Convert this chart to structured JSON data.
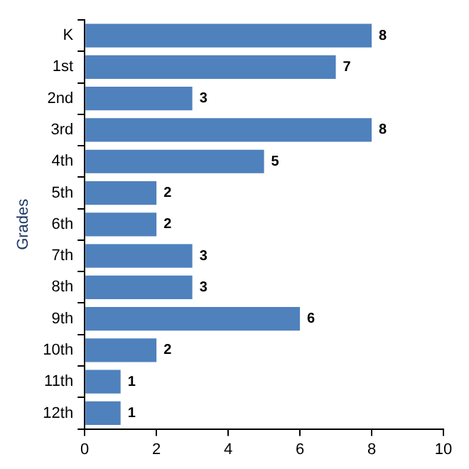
{
  "chart_data": {
    "type": "bar",
    "orientation": "horizontal",
    "ylabel": "Grades",
    "categories": [
      "K",
      "1st",
      "2nd",
      "3rd",
      "4th",
      "5th",
      "6th",
      "7th",
      "8th",
      "9th",
      "10th",
      "11th",
      "12th"
    ],
    "values": [
      8,
      7,
      3,
      8,
      5,
      2,
      2,
      3,
      3,
      6,
      2,
      1,
      1
    ],
    "color": "#4f81bd",
    "xlim": [
      0,
      10
    ],
    "xticks": [
      0,
      2,
      4,
      6,
      8,
      10
    ],
    "grid": false,
    "legend": false,
    "data_labels": true
  }
}
